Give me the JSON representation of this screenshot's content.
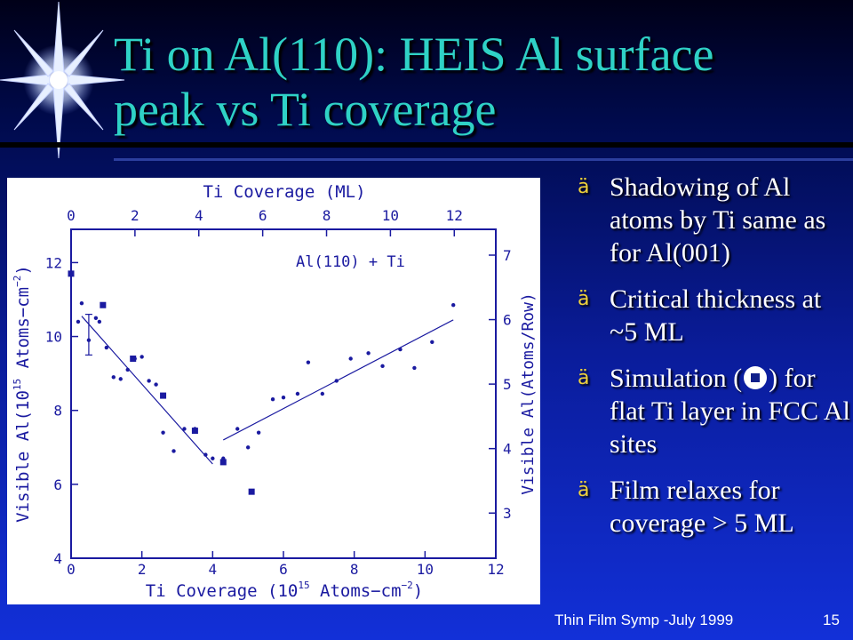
{
  "slide": {
    "title_line1": "Ti on Al(110): HEIS Al surface",
    "title_line2": "peak vs Ti coverage",
    "footer": "Thin Film  Symp -July 1999",
    "page_number": "15",
    "colors": {
      "title": "#2fd2c6",
      "bullet_marker": "#f0d23a",
      "background": "#1230d8",
      "plot_ink": "#1a1aa0"
    }
  },
  "bullets": [
    {
      "pre": "Shadowing of Al atoms by Ti same as  for Al(001)",
      "post": ""
    },
    {
      "pre": "Critical thickness at ~5 ML",
      "post": ""
    },
    {
      "pre": "Simulation (",
      "post": ") for flat Ti layer in FCC Al sites"
    },
    {
      "pre": "Film relaxes for coverage > 5 ML",
      "post": ""
    }
  ],
  "bullet_marker_glyph": "ä",
  "chart_data": {
    "type": "scatter",
    "annotation": "Al(110) + Ti",
    "top_axis_title": "Ti Coverage (ML)",
    "bottom_axis_title": "Ti Coverage (10",
    "bottom_axis_title_sup": "15",
    "bottom_axis_title_rest": " Atoms−cm",
    "bottom_axis_title_sup2": "−2",
    "bottom_axis_title_end": ")",
    "left_axis_title": "Visible Al(10",
    "left_axis_title_sup": "15",
    "left_axis_title_rest": " Atoms−cm",
    "left_axis_title_sup2": "−2",
    "left_axis_title_end": ")",
    "right_axis_title": "Visible Al(Atoms/Row)",
    "xlim": [
      0,
      12
    ],
    "ylim": [
      4,
      12.9
    ],
    "top_xlim": [
      0,
      13.3
    ],
    "right_ylim": [
      2.3,
      7.4
    ],
    "x_ticks": [
      "0",
      "2",
      "4",
      "6",
      "8",
      "10",
      "12"
    ],
    "y_ticks": [
      "4",
      "6",
      "8",
      "10",
      "12"
    ],
    "top_ticks": [
      "0",
      "2",
      "4",
      "6",
      "8",
      "10",
      "12"
    ],
    "right_ticks": [
      "3",
      "4",
      "5",
      "6",
      "7"
    ],
    "series": [
      {
        "marker": "dot",
        "points": [
          [
            0.2,
            10.4
          ],
          [
            0.3,
            10.9
          ],
          [
            0.5,
            9.9
          ],
          [
            0.7,
            10.5
          ],
          [
            0.8,
            10.4
          ],
          [
            1.0,
            9.7
          ],
          [
            1.2,
            8.9
          ],
          [
            1.4,
            8.85
          ],
          [
            1.6,
            9.1
          ],
          [
            1.8,
            9.4
          ],
          [
            2.0,
            9.45
          ],
          [
            2.2,
            8.8
          ],
          [
            2.4,
            8.7
          ],
          [
            2.6,
            7.4
          ],
          [
            2.9,
            6.9
          ],
          [
            3.2,
            7.5
          ],
          [
            3.5,
            7.5
          ],
          [
            3.8,
            6.8
          ],
          [
            4.0,
            6.7
          ],
          [
            4.3,
            6.7
          ],
          [
            4.7,
            7.5
          ],
          [
            5.0,
            7.0
          ],
          [
            5.3,
            7.4
          ],
          [
            5.7,
            8.3
          ],
          [
            6.0,
            8.35
          ],
          [
            6.4,
            8.45
          ],
          [
            6.7,
            9.3
          ],
          [
            7.1,
            8.45
          ],
          [
            7.5,
            8.8
          ],
          [
            7.9,
            9.4
          ],
          [
            8.4,
            9.55
          ],
          [
            8.8,
            9.2
          ],
          [
            9.3,
            9.65
          ],
          [
            9.7,
            9.15
          ],
          [
            10.2,
            9.85
          ],
          [
            10.8,
            10.85
          ]
        ]
      },
      {
        "marker": "square",
        "points": [
          [
            0.0,
            11.7
          ],
          [
            0.9,
            10.85
          ],
          [
            1.75,
            9.4
          ],
          [
            2.6,
            8.4
          ],
          [
            3.5,
            7.45
          ],
          [
            4.3,
            6.6
          ],
          [
            5.1,
            5.8
          ]
        ]
      }
    ],
    "error_bar": {
      "x": 0.5,
      "y": 10.05,
      "low": 9.5,
      "high": 10.6
    },
    "fit_lines": [
      {
        "x": [
          0.3,
          4.0
        ],
        "y": [
          10.55,
          6.55
        ]
      },
      {
        "x": [
          4.3,
          10.8
        ],
        "y": [
          7.2,
          10.45
        ]
      }
    ]
  }
}
